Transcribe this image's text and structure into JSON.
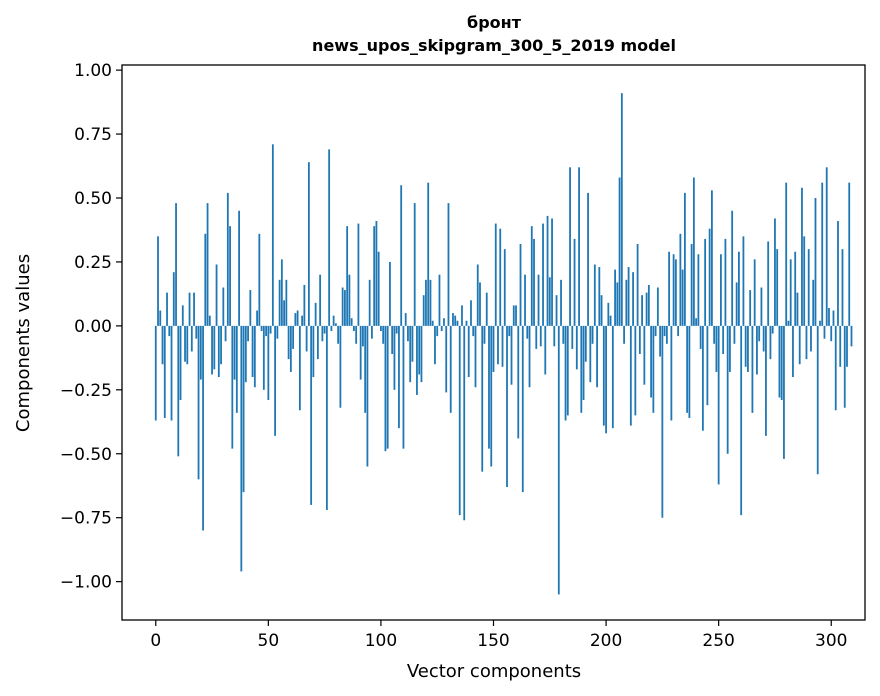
{
  "chart_data": {
    "type": "bar",
    "title": "бронт",
    "subtitle": "news_upos_skipgram_300_5_2019 model",
    "xlabel": "Vector components",
    "ylabel": "Components values",
    "xlim": [
      -15,
      315
    ],
    "ylim": [
      -1.15,
      1.02
    ],
    "xticks": [
      0,
      50,
      100,
      150,
      200,
      250,
      300
    ],
    "xtick_labels": [
      "0",
      "50",
      "100",
      "150",
      "200",
      "250",
      "300"
    ],
    "yticks": [
      1.0,
      0.75,
      0.5,
      0.25,
      0.0,
      -0.25,
      -0.5,
      -0.75,
      -1.0
    ],
    "ytick_labels": [
      "1.00",
      "0.75",
      "0.50",
      "0.25",
      "0.00",
      "−0.25",
      "−0.50",
      "−0.75",
      "−1.00"
    ],
    "bar_color": "#1f77b4",
    "values": [
      -0.37,
      0.35,
      0.06,
      -0.15,
      -0.36,
      0.13,
      -0.04,
      -0.37,
      0.21,
      0.48,
      -0.51,
      -0.29,
      0.08,
      -0.14,
      -0.15,
      0.13,
      -0.1,
      0.13,
      -0.05,
      -0.6,
      -0.21,
      -0.8,
      0.36,
      0.48,
      0.04,
      -0.19,
      -0.17,
      0.24,
      -0.2,
      -0.15,
      0.15,
      -0.06,
      0.52,
      0.39,
      -0.48,
      -0.21,
      -0.34,
      0.45,
      -0.96,
      -0.65,
      -0.22,
      -0.06,
      0.14,
      -0.2,
      -0.24,
      0.06,
      0.36,
      -0.02,
      -0.25,
      -0.04,
      -0.29,
      -0.03,
      0.71,
      -0.43,
      -0.05,
      0.18,
      0.26,
      0.1,
      0.18,
      -0.13,
      -0.18,
      -0.09,
      0.05,
      0.06,
      -0.33,
      0.04,
      0.16,
      -0.1,
      0.64,
      -0.7,
      -0.2,
      0.09,
      -0.13,
      0.2,
      -0.06,
      -0.03,
      -0.72,
      0.69,
      -0.02,
      0.04,
      0.01,
      -0.07,
      -0.32,
      0.15,
      0.14,
      0.39,
      0.2,
      0.03,
      -0.02,
      -0.07,
      0.4,
      -0.21,
      -0.08,
      -0.34,
      -0.55,
      0.18,
      -0.05,
      0.39,
      0.41,
      0.29,
      -0.02,
      -0.07,
      -0.49,
      -0.48,
      0.25,
      -0.11,
      -0.25,
      -0.03,
      -0.4,
      0.55,
      -0.48,
      0.05,
      -0.06,
      -0.22,
      -0.14,
      0.48,
      -0.27,
      -0.19,
      -0.22,
      0.12,
      0.18,
      0.56,
      0.18,
      0.02,
      -0.15,
      -0.04,
      0.2,
      -0.02,
      0.03,
      -0.26,
      0.48,
      -0.34,
      0.05,
      0.04,
      0.02,
      -0.74,
      0.08,
      -0.76,
      0.02,
      -0.2,
      0.1,
      -0.04,
      -0.24,
      0.24,
      0.17,
      -0.57,
      -0.07,
      0.13,
      -0.48,
      -0.55,
      -0.18,
      0.4,
      -0.15,
      0.38,
      -0.16,
      0.3,
      -0.63,
      -0.04,
      -0.23,
      0.08,
      0.08,
      -0.44,
      0.32,
      -0.65,
      0.2,
      -0.05,
      -0.24,
      0.39,
      0.34,
      -0.09,
      0.2,
      -0.08,
      0.4,
      -0.19,
      0.43,
      0.19,
      0.42,
      -0.08,
      0.12,
      -1.05,
      0.18,
      -0.07,
      -0.37,
      -0.35,
      0.62,
      -0.09,
      0.34,
      -0.17,
      0.62,
      -0.34,
      -0.29,
      -0.14,
      0.52,
      -0.22,
      -0.07,
      0.24,
      -0.24,
      0.23,
      0.12,
      -0.39,
      -0.42,
      0.09,
      0.04,
      -0.4,
      0.22,
      0.17,
      0.58,
      0.91,
      -0.07,
      0.18,
      0.23,
      -0.39,
      0.21,
      -0.35,
      0.32,
      -0.11,
      0.12,
      -0.23,
      0.13,
      0.16,
      -0.28,
      -0.34,
      -0.04,
      0.15,
      -0.12,
      -0.75,
      -0.04,
      -0.07,
      0.29,
      -0.37,
      0.28,
      0.26,
      -0.04,
      0.36,
      0.22,
      0.52,
      -0.34,
      -0.36,
      0.32,
      0.58,
      0.03,
      0.28,
      -0.09,
      -0.41,
      0.34,
      -0.31,
      0.38,
      0.53,
      -0.07,
      -0.18,
      -0.62,
      0.28,
      -0.11,
      0.34,
      -0.5,
      -0.18,
      0.45,
      -0.07,
      0.17,
      0.29,
      -0.74,
      0.35,
      -0.16,
      -0.18,
      0.14,
      -0.34,
      0.26,
      -0.19,
      -0.06,
      0.15,
      -0.1,
      -0.43,
      0.33,
      -0.13,
      -0.03,
      0.42,
      0.3,
      -0.28,
      -0.29,
      -0.52,
      0.56,
      0.02,
      0.26,
      -0.2,
      0.29,
      0.13,
      -0.15,
      0.54,
      0.35,
      -0.13,
      0.3,
      -0.1,
      0.18,
      0.5,
      -0.58,
      0.02,
      0.56,
      -0.05,
      0.62,
      0.07,
      -0.06,
      0.06,
      -0.33,
      0.41,
      -0.16,
      0.3,
      -0.32,
      -0.16,
      0.56,
      -0.08
    ]
  }
}
